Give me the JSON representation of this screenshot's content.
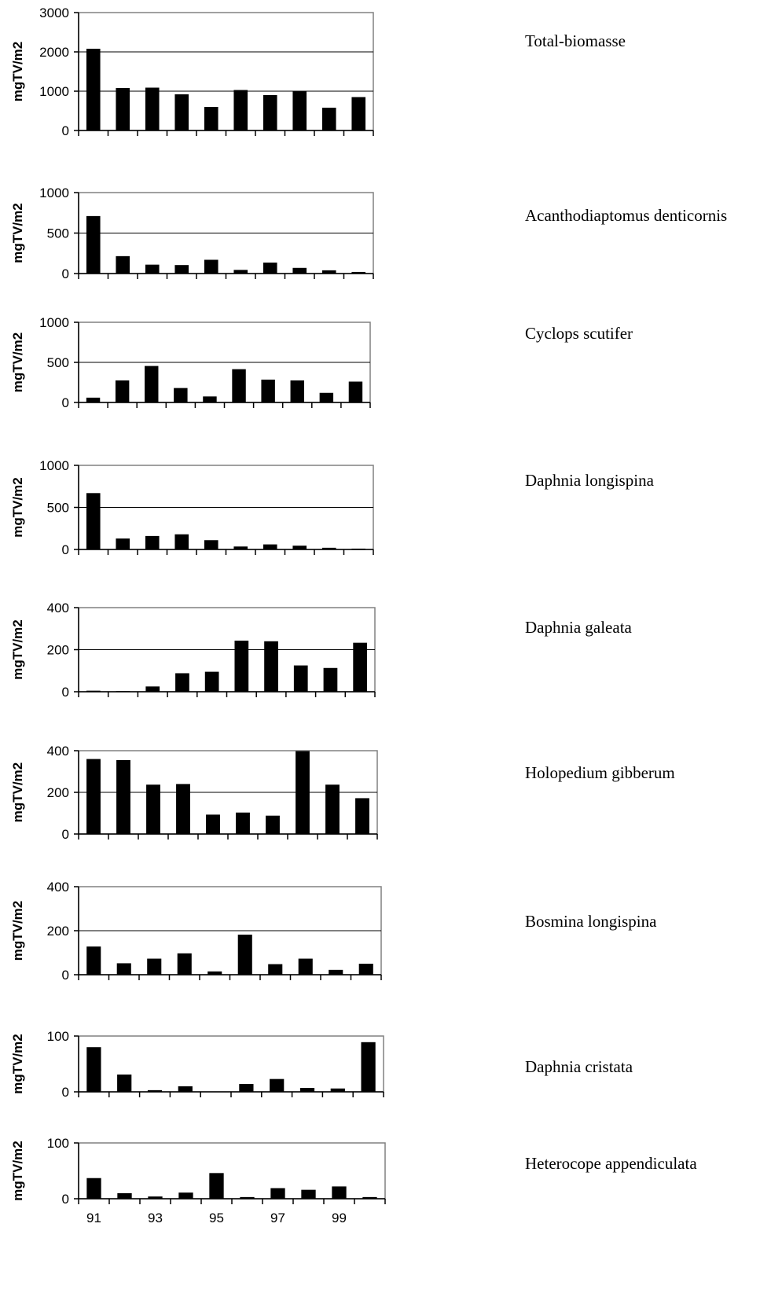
{
  "chart_data": [
    {
      "type": "bar",
      "title": "Total-biomasse",
      "ylabel": "mgTV/m2",
      "ylim": [
        0,
        3000
      ],
      "yticks": [
        "0",
        "1000",
        "2000",
        "3000"
      ],
      "x": [
        91,
        92,
        93,
        94,
        95,
        96,
        97,
        98,
        99,
        100
      ],
      "values": [
        2080,
        1080,
        1090,
        920,
        600,
        1030,
        900,
        1000,
        580,
        850
      ],
      "grid": true
    },
    {
      "type": "bar",
      "title": "Acanthodiaptomus denticornis",
      "ylabel": "mgTV/m2",
      "ylim": [
        0,
        1000
      ],
      "yticks": [
        "0",
        "500",
        "1000"
      ],
      "x": [
        91,
        92,
        93,
        94,
        95,
        96,
        97,
        98,
        99,
        100
      ],
      "values": [
        710,
        215,
        110,
        105,
        170,
        45,
        135,
        70,
        40,
        20
      ],
      "grid": true
    },
    {
      "type": "bar",
      "title": "Cyclops scutifer",
      "ylabel": "mgTV/m2",
      "ylim": [
        0,
        1000
      ],
      "yticks": [
        "0",
        "500",
        "1000"
      ],
      "x": [
        91,
        92,
        93,
        94,
        95,
        96,
        97,
        98,
        99,
        100
      ],
      "values": [
        60,
        275,
        455,
        180,
        75,
        415,
        285,
        275,
        120,
        260
      ],
      "grid": true
    },
    {
      "type": "bar",
      "title": "Daphnia longispina",
      "ylabel": "mgTV/m2",
      "ylim": [
        0,
        1000
      ],
      "yticks": [
        "0",
        "500",
        "1000"
      ],
      "x": [
        91,
        92,
        93,
        94,
        95,
        96,
        97,
        98,
        99,
        100
      ],
      "values": [
        670,
        130,
        160,
        180,
        110,
        35,
        60,
        45,
        20,
        10
      ],
      "grid": true
    },
    {
      "type": "bar",
      "title": "Daphnia galeata",
      "ylabel": "mgTV/m2",
      "ylim": [
        0,
        400
      ],
      "yticks": [
        "0",
        "200",
        "400"
      ],
      "x": [
        91,
        92,
        93,
        94,
        95,
        96,
        97,
        98,
        99,
        100
      ],
      "values": [
        5,
        3,
        25,
        88,
        95,
        243,
        240,
        125,
        113,
        233
      ],
      "grid": true
    },
    {
      "type": "bar",
      "title": "Holopedium gibberum",
      "ylabel": "mgTV/m2",
      "ylim": [
        0,
        400
      ],
      "yticks": [
        "0",
        "200",
        "400"
      ],
      "x": [
        91,
        92,
        93,
        94,
        95,
        96,
        97,
        98,
        99,
        100
      ],
      "values": [
        360,
        355,
        237,
        240,
        93,
        103,
        88,
        398,
        237,
        172
      ],
      "grid": true
    },
    {
      "type": "bar",
      "title": "Bosmina longispina",
      "ylabel": "mgTV/m2",
      "ylim": [
        0,
        400
      ],
      "yticks": [
        "0",
        "200",
        "400"
      ],
      "x": [
        91,
        92,
        93,
        94,
        95,
        96,
        97,
        98,
        99,
        100
      ],
      "values": [
        128,
        52,
        73,
        97,
        15,
        182,
        48,
        73,
        22,
        50
      ],
      "grid": true
    },
    {
      "type": "bar",
      "title": "Daphnia cristata",
      "ylabel": "mgTV/m2",
      "ylim": [
        0,
        100
      ],
      "yticks": [
        "0",
        "100"
      ],
      "x": [
        91,
        92,
        93,
        94,
        95,
        96,
        97,
        98,
        99,
        100
      ],
      "values": [
        80,
        31,
        3,
        10,
        0,
        14,
        23,
        7,
        6,
        89
      ],
      "grid": true
    },
    {
      "type": "bar",
      "title": "Heterocope appendiculata",
      "ylabel": "mgTV/m2",
      "ylim": [
        0,
        100
      ],
      "yticks": [
        "0",
        "100"
      ],
      "x": [
        91,
        92,
        93,
        94,
        95,
        96,
        97,
        98,
        99,
        100
      ],
      "values": [
        37,
        10,
        4,
        11,
        46,
        3,
        19,
        16,
        22,
        3
      ],
      "xticks": [
        "91",
        "93",
        "95",
        "97",
        "99"
      ],
      "grid": true
    }
  ]
}
